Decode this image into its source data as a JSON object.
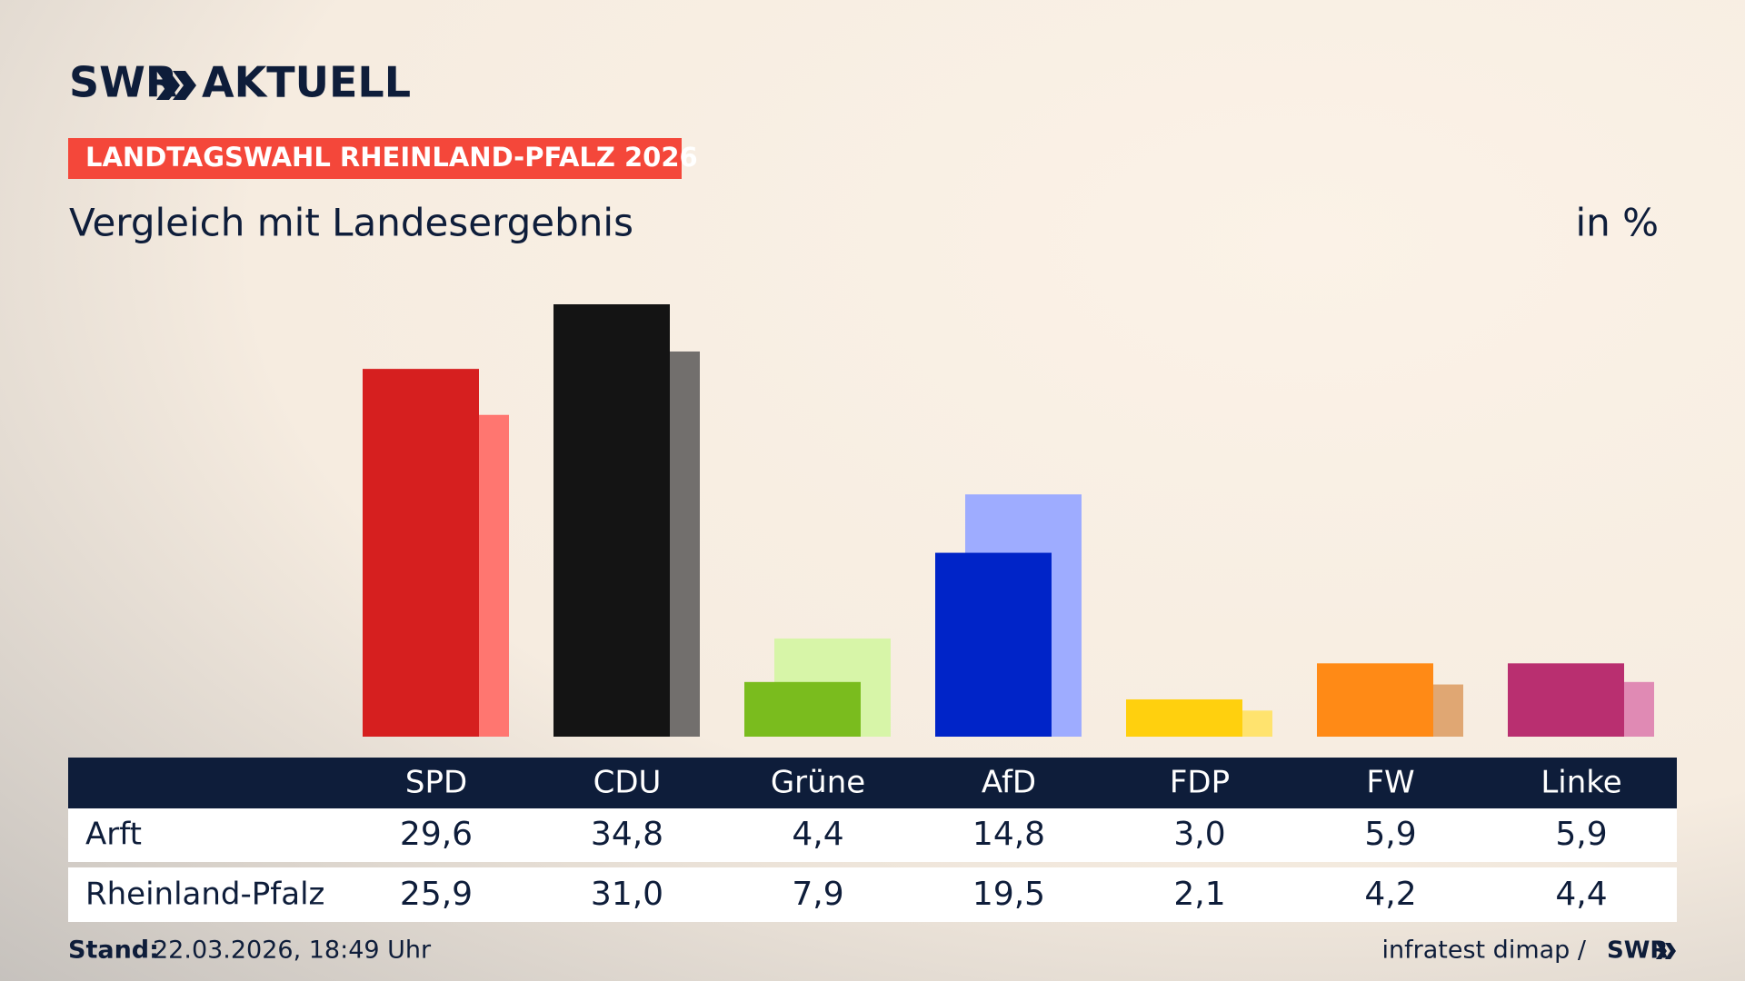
{
  "header": {
    "brand": "SWR",
    "brand_suffix": "AKTUELL"
  },
  "chart_data": {
    "type": "bar",
    "title": "LANDTAGSWAHL RHEINLAND-PFALZ 2026",
    "subtitle": "Vergleich mit Landesergebnis",
    "unit": "in %",
    "categories": [
      "SPD",
      "CDU",
      "Grüne",
      "AfD",
      "FDP",
      "FW",
      "Linke"
    ],
    "series": [
      {
        "name": "Arft",
        "colors": [
          "#d61f1f",
          "#141414",
          "#7abc1e",
          "#0024c8",
          "#ffd00e",
          "#ff8a16",
          "#b92f70"
        ],
        "values": [
          29.6,
          34.8,
          4.4,
          14.8,
          3.0,
          5.9,
          5.9
        ],
        "value_labels": [
          "29,6",
          "34,8",
          "4,4",
          "14,8",
          "3,0",
          "5,9",
          "5,9"
        ]
      },
      {
        "name": "Rheinland-Pfalz",
        "colors": [
          "#ff7670",
          "#726f6d",
          "#d7f5a8",
          "#9eacff",
          "#ffe36e",
          "#e0a773",
          "#e08ab4"
        ],
        "values": [
          25.9,
          31.0,
          7.9,
          19.5,
          2.1,
          4.2,
          4.4
        ],
        "value_labels": [
          "25,9",
          "31,0",
          "7,9",
          "19,5",
          "2,1",
          "4,2",
          "4,4"
        ]
      }
    ]
  },
  "footer": {
    "stand_label": "Stand:",
    "stand": "22.03.2026, 18:49 Uhr",
    "source": "infratest dimap /",
    "logo": "SWR"
  }
}
